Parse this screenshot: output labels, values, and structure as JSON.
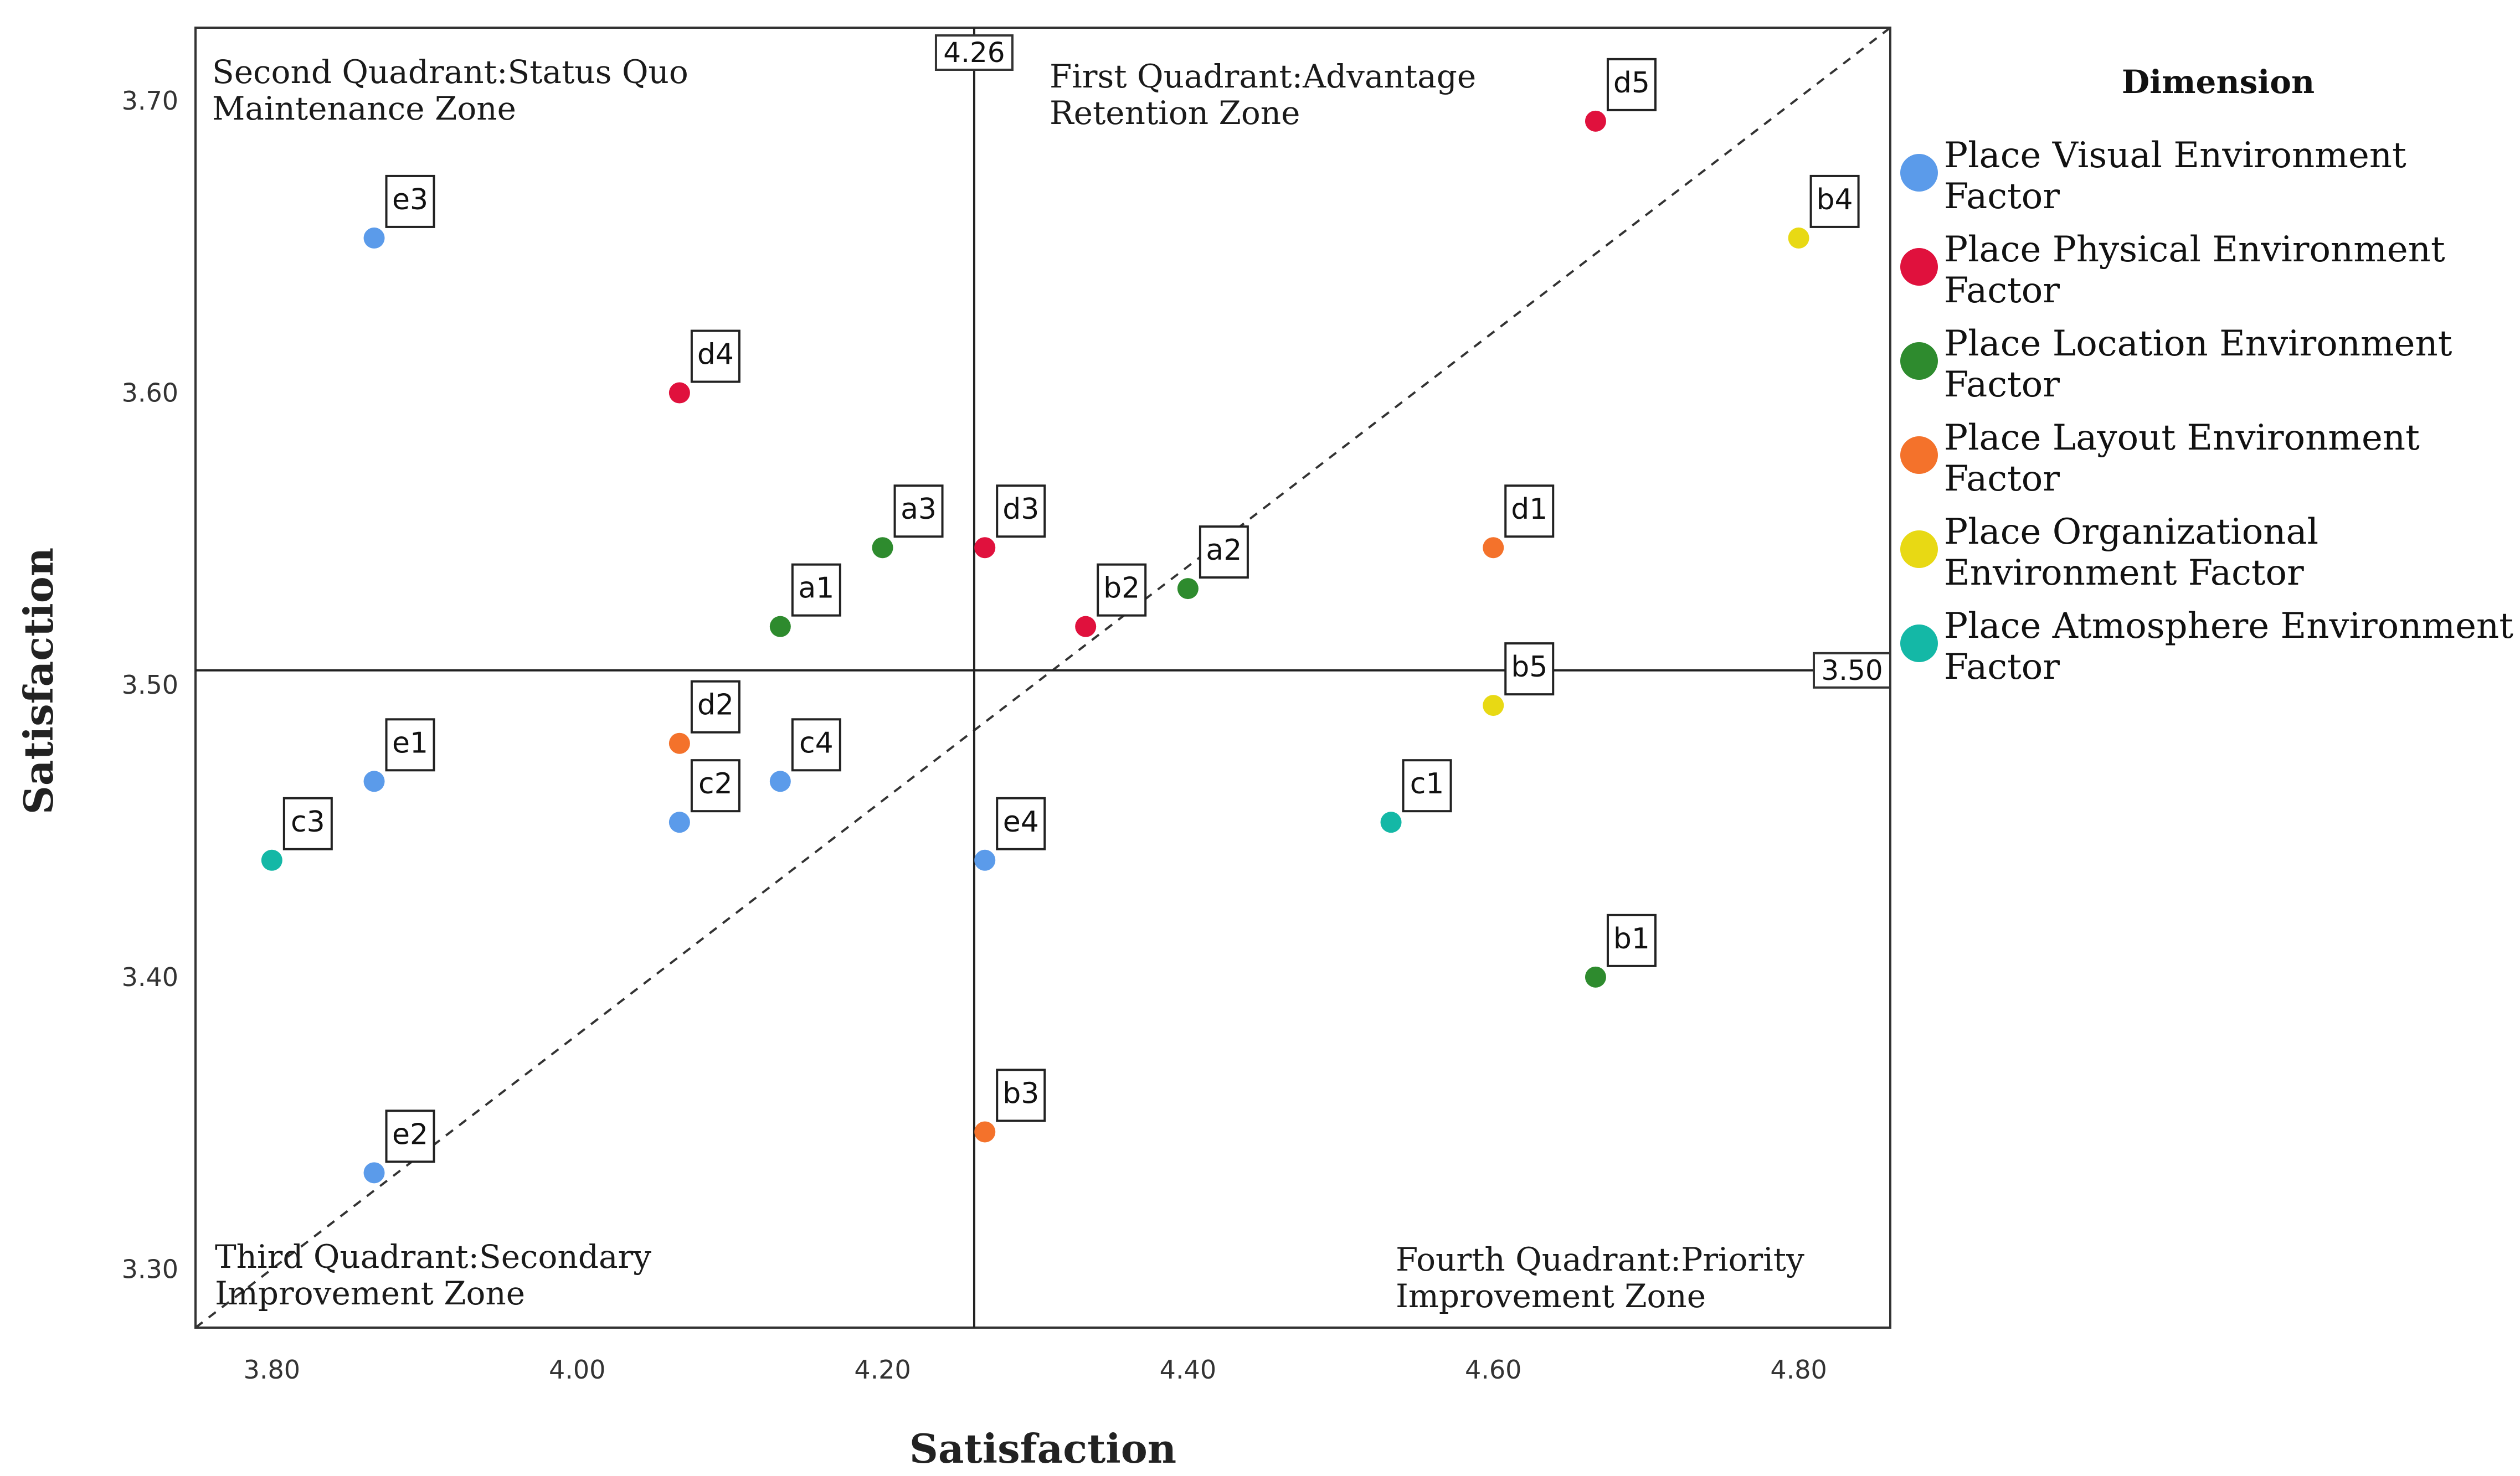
{
  "chart_data": {
    "type": "scatter",
    "title": "",
    "xlabel": "Satisfaction",
    "ylabel": "Satisfaction",
    "xlim": [
      3.75,
      4.86
    ],
    "ylim": [
      3.28,
      3.725
    ],
    "x_ticks": [
      3.8,
      4.0,
      4.2,
      4.4,
      4.6,
      4.8
    ],
    "x_tick_labels": [
      "3.80",
      "4.00",
      "4.20",
      "4.40",
      "4.60",
      "4.80"
    ],
    "y_ticks": [
      3.3,
      3.4,
      3.5,
      3.6,
      3.7
    ],
    "y_tick_labels": [
      "3.30",
      "3.40",
      "3.50",
      "3.60",
      "3.70"
    ],
    "grid": false,
    "reference_lines": {
      "vertical": {
        "value": 4.26,
        "label": "4.26"
      },
      "horizontal": {
        "value": 3.505,
        "label": "3.50"
      },
      "diagonal": {
        "from": [
          3.75,
          3.28
        ],
        "to": [
          4.86,
          3.725
        ],
        "style": "dashed"
      }
    },
    "quadrant_labels": {
      "second": [
        "Second Quadrant:Status Quo",
        "Maintenance Zone"
      ],
      "first": [
        "First Quadrant:Advantage",
        "Retention Zone"
      ],
      "third": [
        "Third Quadrant:Secondary",
        "Improvement Zone"
      ],
      "fourth": [
        "Fourth Quadrant:Priority",
        "Improvement Zone"
      ]
    },
    "legend": {
      "title": "Dimension",
      "position": "right",
      "entries": [
        {
          "name": "Place Visual Environment Factor",
          "lines": [
            "Place Visual Environment",
            "Factor"
          ],
          "color": "#5b9bea"
        },
        {
          "name": "Place Physical Environment Factor",
          "lines": [
            "Place Physical Environment",
            "Factor"
          ],
          "color": "#e0113d"
        },
        {
          "name": "Place Location Environment Factor",
          "lines": [
            "Place Location Environment",
            "Factor"
          ],
          "color": "#2e8b2e"
        },
        {
          "name": "Place Layout Environment Factor",
          "lines": [
            "Place Layout Environment",
            "Factor"
          ],
          "color": "#f4722b"
        },
        {
          "name": "Place Organizational Environment Factor",
          "lines": [
            "Place Organizational",
            "Environment Factor"
          ],
          "color": "#e8d914"
        },
        {
          "name": "Place Atmosphere Environment Factor",
          "lines": [
            "Place Atmosphere Environment",
            "Factor"
          ],
          "color": "#14b8a6"
        }
      ]
    },
    "series": [
      {
        "name": "Place Visual Environment Factor",
        "color": "#5b9bea",
        "points": [
          {
            "label": "e3",
            "x": 3.867,
            "y": 3.653
          },
          {
            "label": "e1",
            "x": 3.867,
            "y": 3.467
          },
          {
            "label": "e2",
            "x": 3.867,
            "y": 3.333
          },
          {
            "label": "c2",
            "x": 4.067,
            "y": 3.453
          },
          {
            "label": "c4",
            "x": 4.133,
            "y": 3.467
          },
          {
            "label": "e4",
            "x": 4.267,
            "y": 3.44
          }
        ]
      },
      {
        "name": "Place Physical Environment Factor",
        "color": "#e0113d",
        "points": [
          {
            "label": "d4",
            "x": 4.067,
            "y": 3.6
          },
          {
            "label": "d3",
            "x": 4.267,
            "y": 3.547
          },
          {
            "label": "b2",
            "x": 4.333,
            "y": 3.52
          },
          {
            "label": "d5",
            "x": 4.667,
            "y": 3.693
          }
        ]
      },
      {
        "name": "Place Location Environment Factor",
        "color": "#2e8b2e",
        "points": [
          {
            "label": "a1",
            "x": 4.133,
            "y": 3.52
          },
          {
            "label": "a3",
            "x": 4.2,
            "y": 3.547
          },
          {
            "label": "a2",
            "x": 4.4,
            "y": 3.533
          },
          {
            "label": "b1",
            "x": 4.667,
            "y": 3.4
          }
        ]
      },
      {
        "name": "Place Layout Environment Factor",
        "color": "#f4722b",
        "points": [
          {
            "label": "d2",
            "x": 4.067,
            "y": 3.48
          },
          {
            "label": "d1",
            "x": 4.6,
            "y": 3.547
          },
          {
            "label": "b3",
            "x": 4.267,
            "y": 3.347
          }
        ]
      },
      {
        "name": "Place Organizational Environment Factor",
        "color": "#e8d914",
        "points": [
          {
            "label": "b4",
            "x": 4.8,
            "y": 3.653
          },
          {
            "label": "b5",
            "x": 4.6,
            "y": 3.493
          }
        ]
      },
      {
        "name": "Place Atmosphere Environment Factor",
        "color": "#14b8a6",
        "points": [
          {
            "label": "c3",
            "x": 3.8,
            "y": 3.44
          },
          {
            "label": "c1",
            "x": 4.533,
            "y": 3.453
          }
        ]
      }
    ]
  }
}
